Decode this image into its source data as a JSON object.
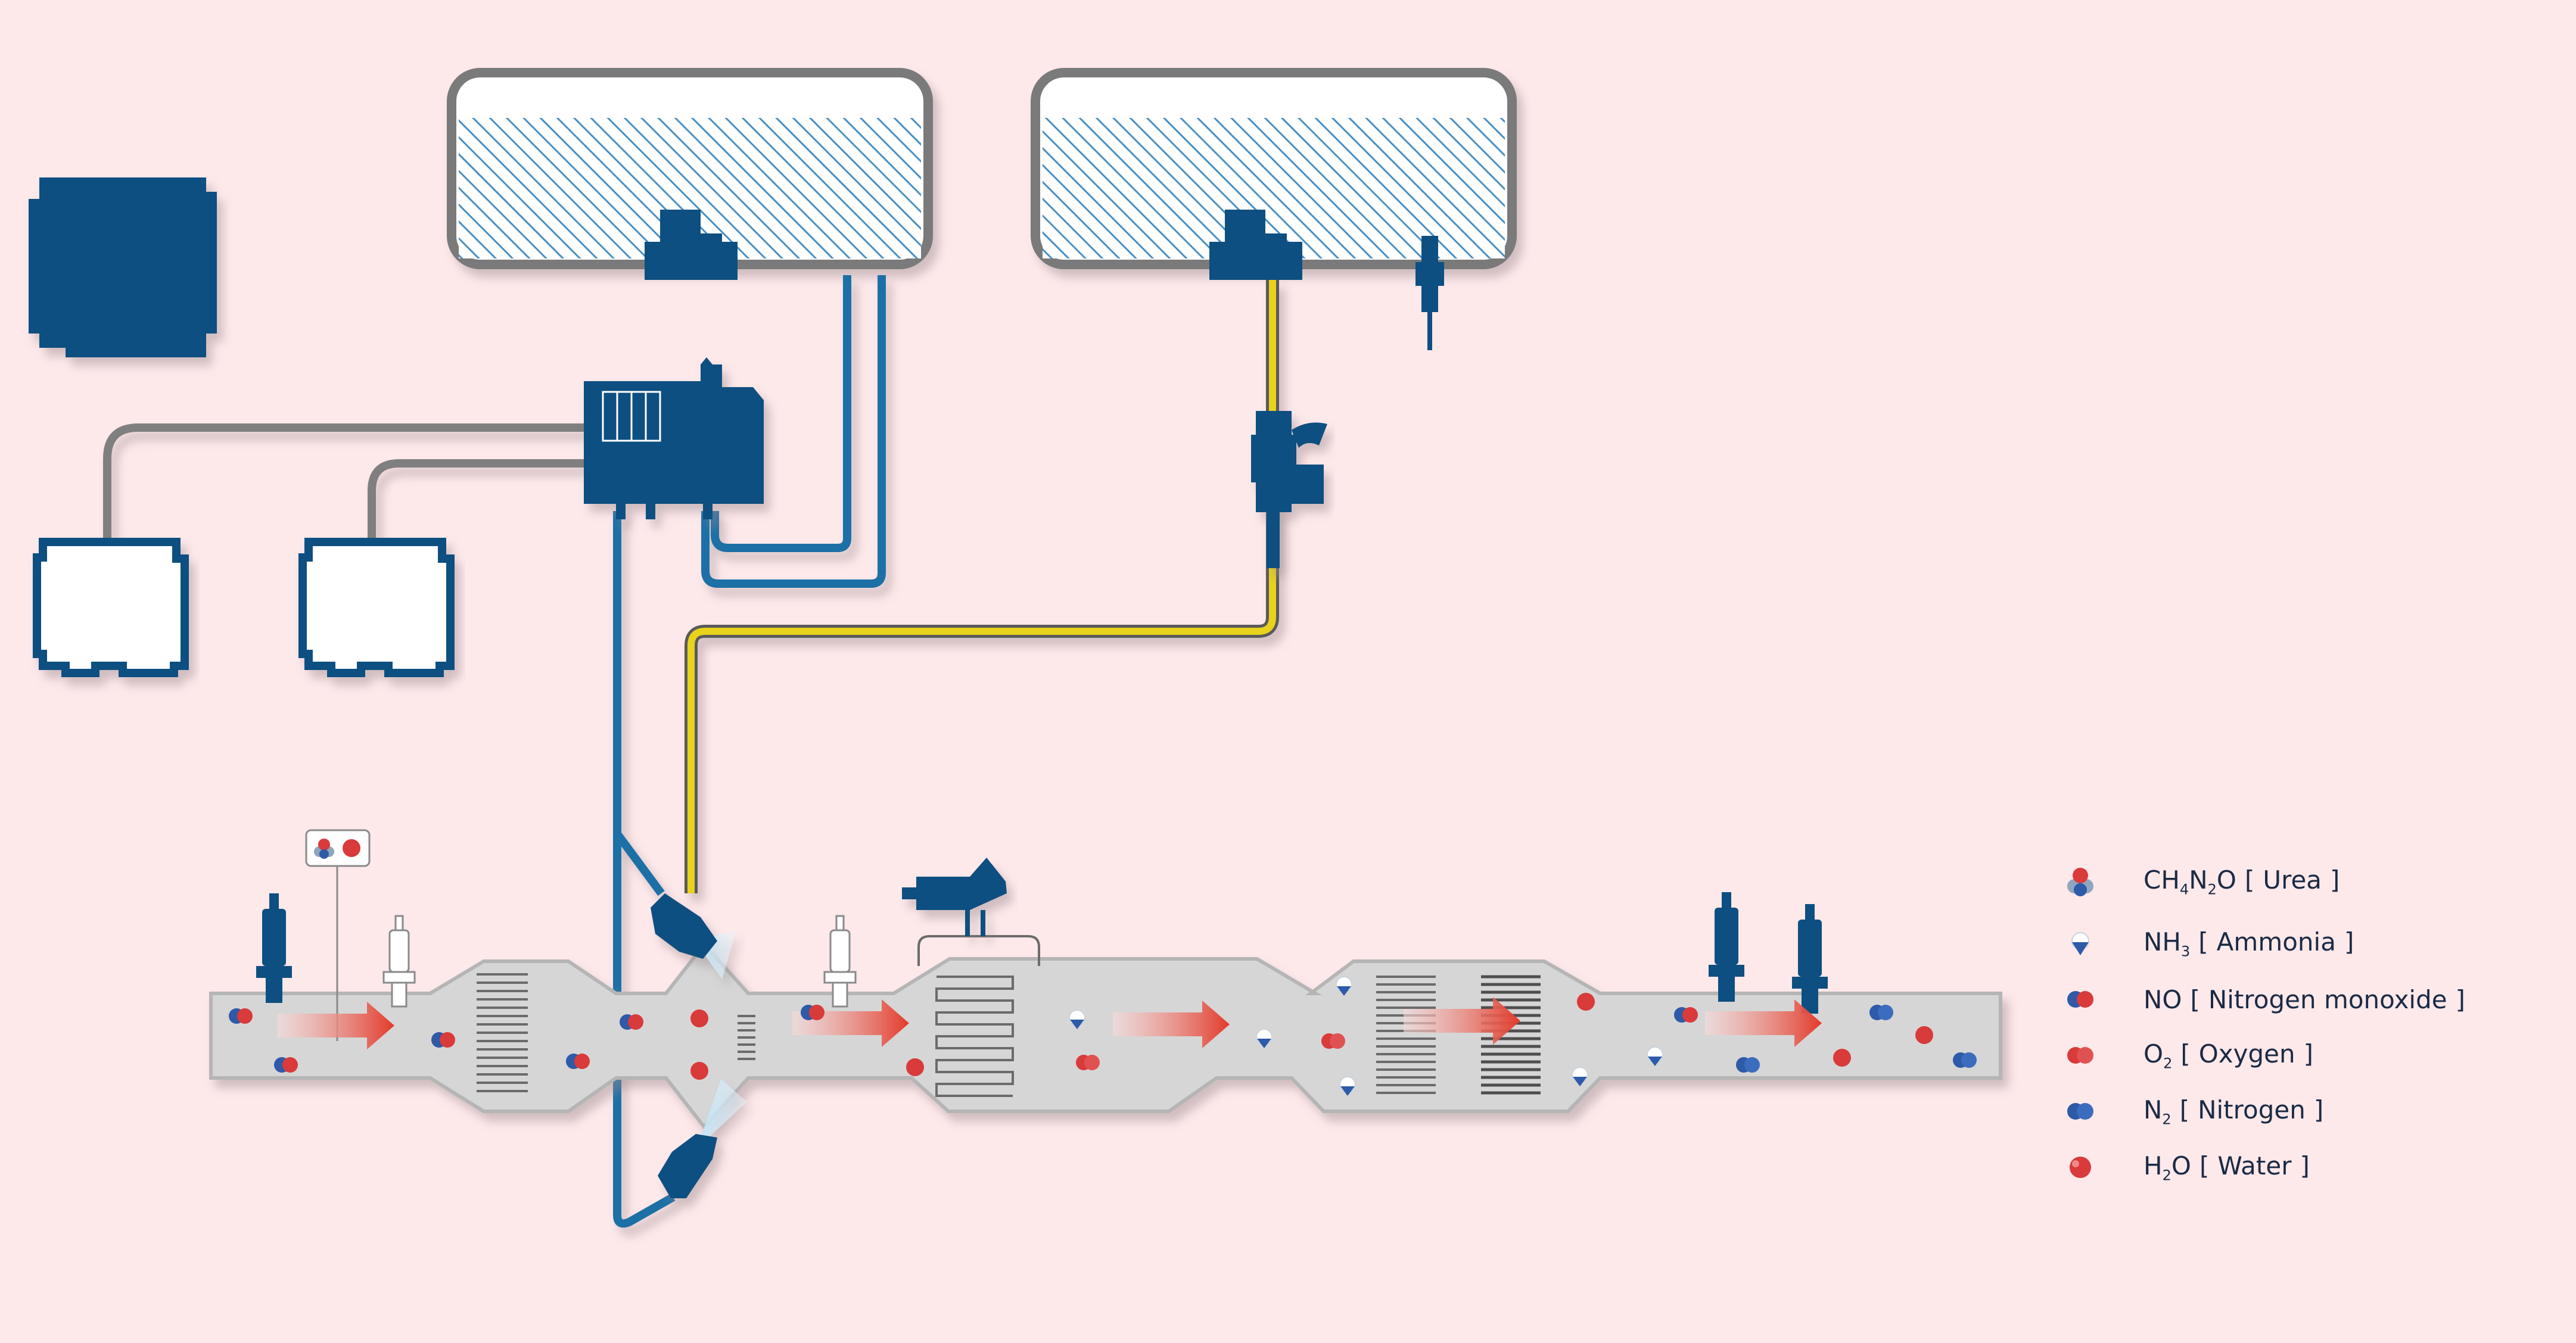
{
  "legend": [
    {
      "key": "urea",
      "icon": "urea-molecule-icon",
      "formula_parts": [
        "CH",
        "4",
        "N",
        "2",
        "O"
      ],
      "name": "Urea"
    },
    {
      "key": "ammonia",
      "icon": "ammonia-molecule-icon",
      "formula_parts": [
        "NH",
        "3"
      ],
      "name": "Ammonia"
    },
    {
      "key": "no",
      "icon": "nitrogen-monoxide-molecule-icon",
      "formula_parts": [
        "NO"
      ],
      "name": "Nitrogen monoxide"
    },
    {
      "key": "o2",
      "icon": "oxygen-molecule-icon",
      "formula_parts": [
        "O",
        "2"
      ],
      "name": "Oxygen"
    },
    {
      "key": "n2",
      "icon": "nitrogen-molecule-icon",
      "formula_parts": [
        "N",
        "2"
      ],
      "name": "Nitrogen"
    },
    {
      "key": "h2o",
      "icon": "water-molecule-icon",
      "formula_parts": [
        "H",
        "2",
        "O"
      ],
      "name": "Water"
    }
  ],
  "bracket_open": "[",
  "bracket_close": "]",
  "colors": {
    "background": "#fde8ea",
    "component_blue": "#0d4f80",
    "pipe_blue": "#1a6fa6",
    "fuel_line_yellow": "#e8d21a",
    "wire_grey": "#7f7f7f",
    "exhaust_grey": "#d6d6d6",
    "flow_arrow_red": "#e23a2a",
    "molecule_red": "#d93a3a",
    "molecule_blue": "#2e5aa8"
  }
}
